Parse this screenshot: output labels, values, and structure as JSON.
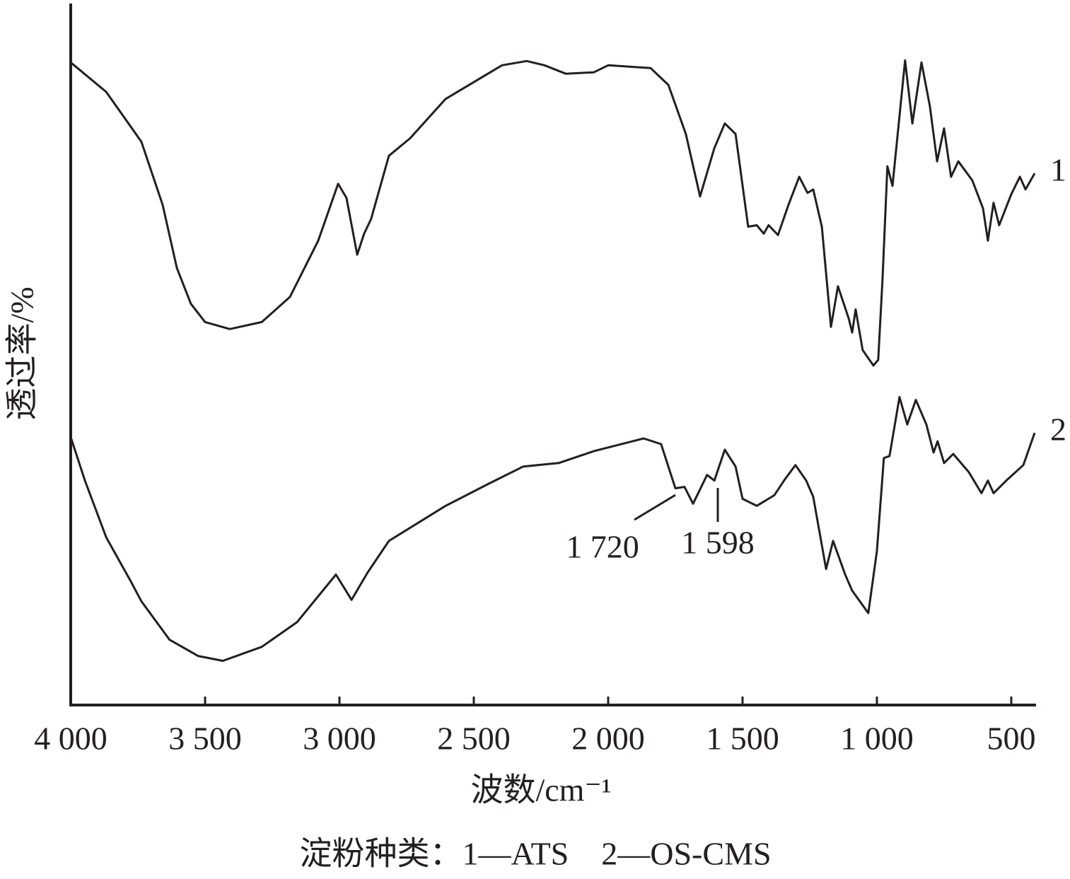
{
  "chart_data": {
    "type": "line",
    "x_label": "波数/cm⁻¹",
    "y_label": "透过率/%",
    "caption": "淀粉种类：1—ATS　2—OS-CMS",
    "annotations": [
      "1 720",
      "1 598"
    ],
    "xlim": [
      4000,
      413
    ],
    "ylim": [
      0,
      100
    ],
    "xticks": [
      {
        "value": 4000,
        "label": "4 000"
      },
      {
        "value": 3500,
        "label": "3 500"
      },
      {
        "value": 3000,
        "label": "3 000"
      },
      {
        "value": 2500,
        "label": "2 500"
      },
      {
        "value": 2000,
        "label": "2 000"
      },
      {
        "value": 1500,
        "label": "1 500"
      },
      {
        "value": 1000,
        "label": "1 000"
      },
      500
    ],
    "series": [
      {
        "name": "1",
        "color": "#231f20",
        "x": [
          4000,
          3868,
          3737,
          3658,
          3605,
          3553,
          3500,
          3408,
          3289,
          3184,
          3079,
          3005,
          2974,
          2934,
          2908,
          2882,
          2816,
          2737,
          2605,
          2474,
          2395,
          2303,
          2237,
          2158,
          2053,
          2000,
          1842,
          1776,
          1711,
          1658,
          1605,
          1566,
          1526,
          1479,
          1447,
          1421,
          1403,
          1368,
          1329,
          1289,
          1258,
          1237,
          1205,
          1171,
          1145,
          1105,
          1092,
          1079,
          1053,
          1013,
          995,
          979,
          961,
          942,
          895,
          868,
          834,
          803,
          776,
          750,
          724,
          697,
          645,
          605,
          587,
          566,
          545,
          500,
          468,
          447,
          413
        ],
        "values": [
          91.6,
          87.4,
          80.3,
          71.3,
          62.3,
          57.2,
          54.6,
          53.6,
          54.6,
          58.2,
          66.2,
          74.3,
          72.3,
          64.2,
          67.2,
          69.3,
          78.3,
          80.8,
          86.4,
          89.4,
          91.2,
          91.8,
          91.2,
          90.0,
          90.2,
          91.2,
          90.8,
          88.4,
          81.4,
          72.5,
          79.4,
          82.9,
          81.4,
          68.2,
          68.4,
          67.2,
          68.4,
          67.0,
          71.3,
          75.3,
          73.0,
          73.5,
          68.2,
          53.9,
          59.7,
          55.1,
          53.1,
          56.4,
          50.6,
          48.4,
          49.2,
          60.7,
          76.8,
          74.0,
          91.9,
          82.9,
          91.6,
          85.4,
          77.5,
          82.2,
          75.3,
          77.5,
          74.8,
          70.8,
          66.2,
          71.6,
          68.4,
          72.8,
          75.3,
          73.5,
          75.8
        ]
      },
      {
        "name": "2",
        "color": "#231f20",
        "x": [
          4000,
          3947,
          3868,
          3776,
          3737,
          3632,
          3526,
          3434,
          3289,
          3158,
          3013,
          2955,
          2895,
          2816,
          2605,
          2447,
          2316,
          2184,
          2053,
          1868,
          1803,
          1750,
          1716,
          1684,
          1632,
          1605,
          1566,
          1526,
          1500,
          1447,
          1382,
          1342,
          1303,
          1263,
          1237,
          1189,
          1163,
          1118,
          1092,
          1032,
          1000,
          974,
          953,
          916,
          887,
          855,
          816,
          789,
          774,
          750,
          716,
          658,
          611,
          587,
          566,
          513,
          455,
          413
        ],
        "values": [
          38.2,
          32.0,
          23.9,
          17.6,
          14.8,
          9.3,
          7.0,
          6.3,
          8.3,
          11.8,
          18.6,
          15.0,
          18.9,
          23.4,
          28.4,
          31.5,
          34.0,
          34.5,
          36.2,
          38.0,
          37.2,
          30.9,
          31.1,
          28.7,
          32.8,
          32.0,
          36.4,
          34.0,
          29.4,
          28.4,
          29.9,
          32.2,
          34.2,
          32.0,
          29.7,
          19.4,
          23.4,
          18.6,
          16.3,
          13.1,
          21.9,
          35.2,
          35.5,
          43.9,
          40.0,
          43.5,
          40.0,
          36.0,
          37.6,
          34.5,
          35.8,
          33.2,
          30.2,
          32.0,
          30.2,
          32.2,
          34.2,
          38.8
        ]
      }
    ]
  }
}
